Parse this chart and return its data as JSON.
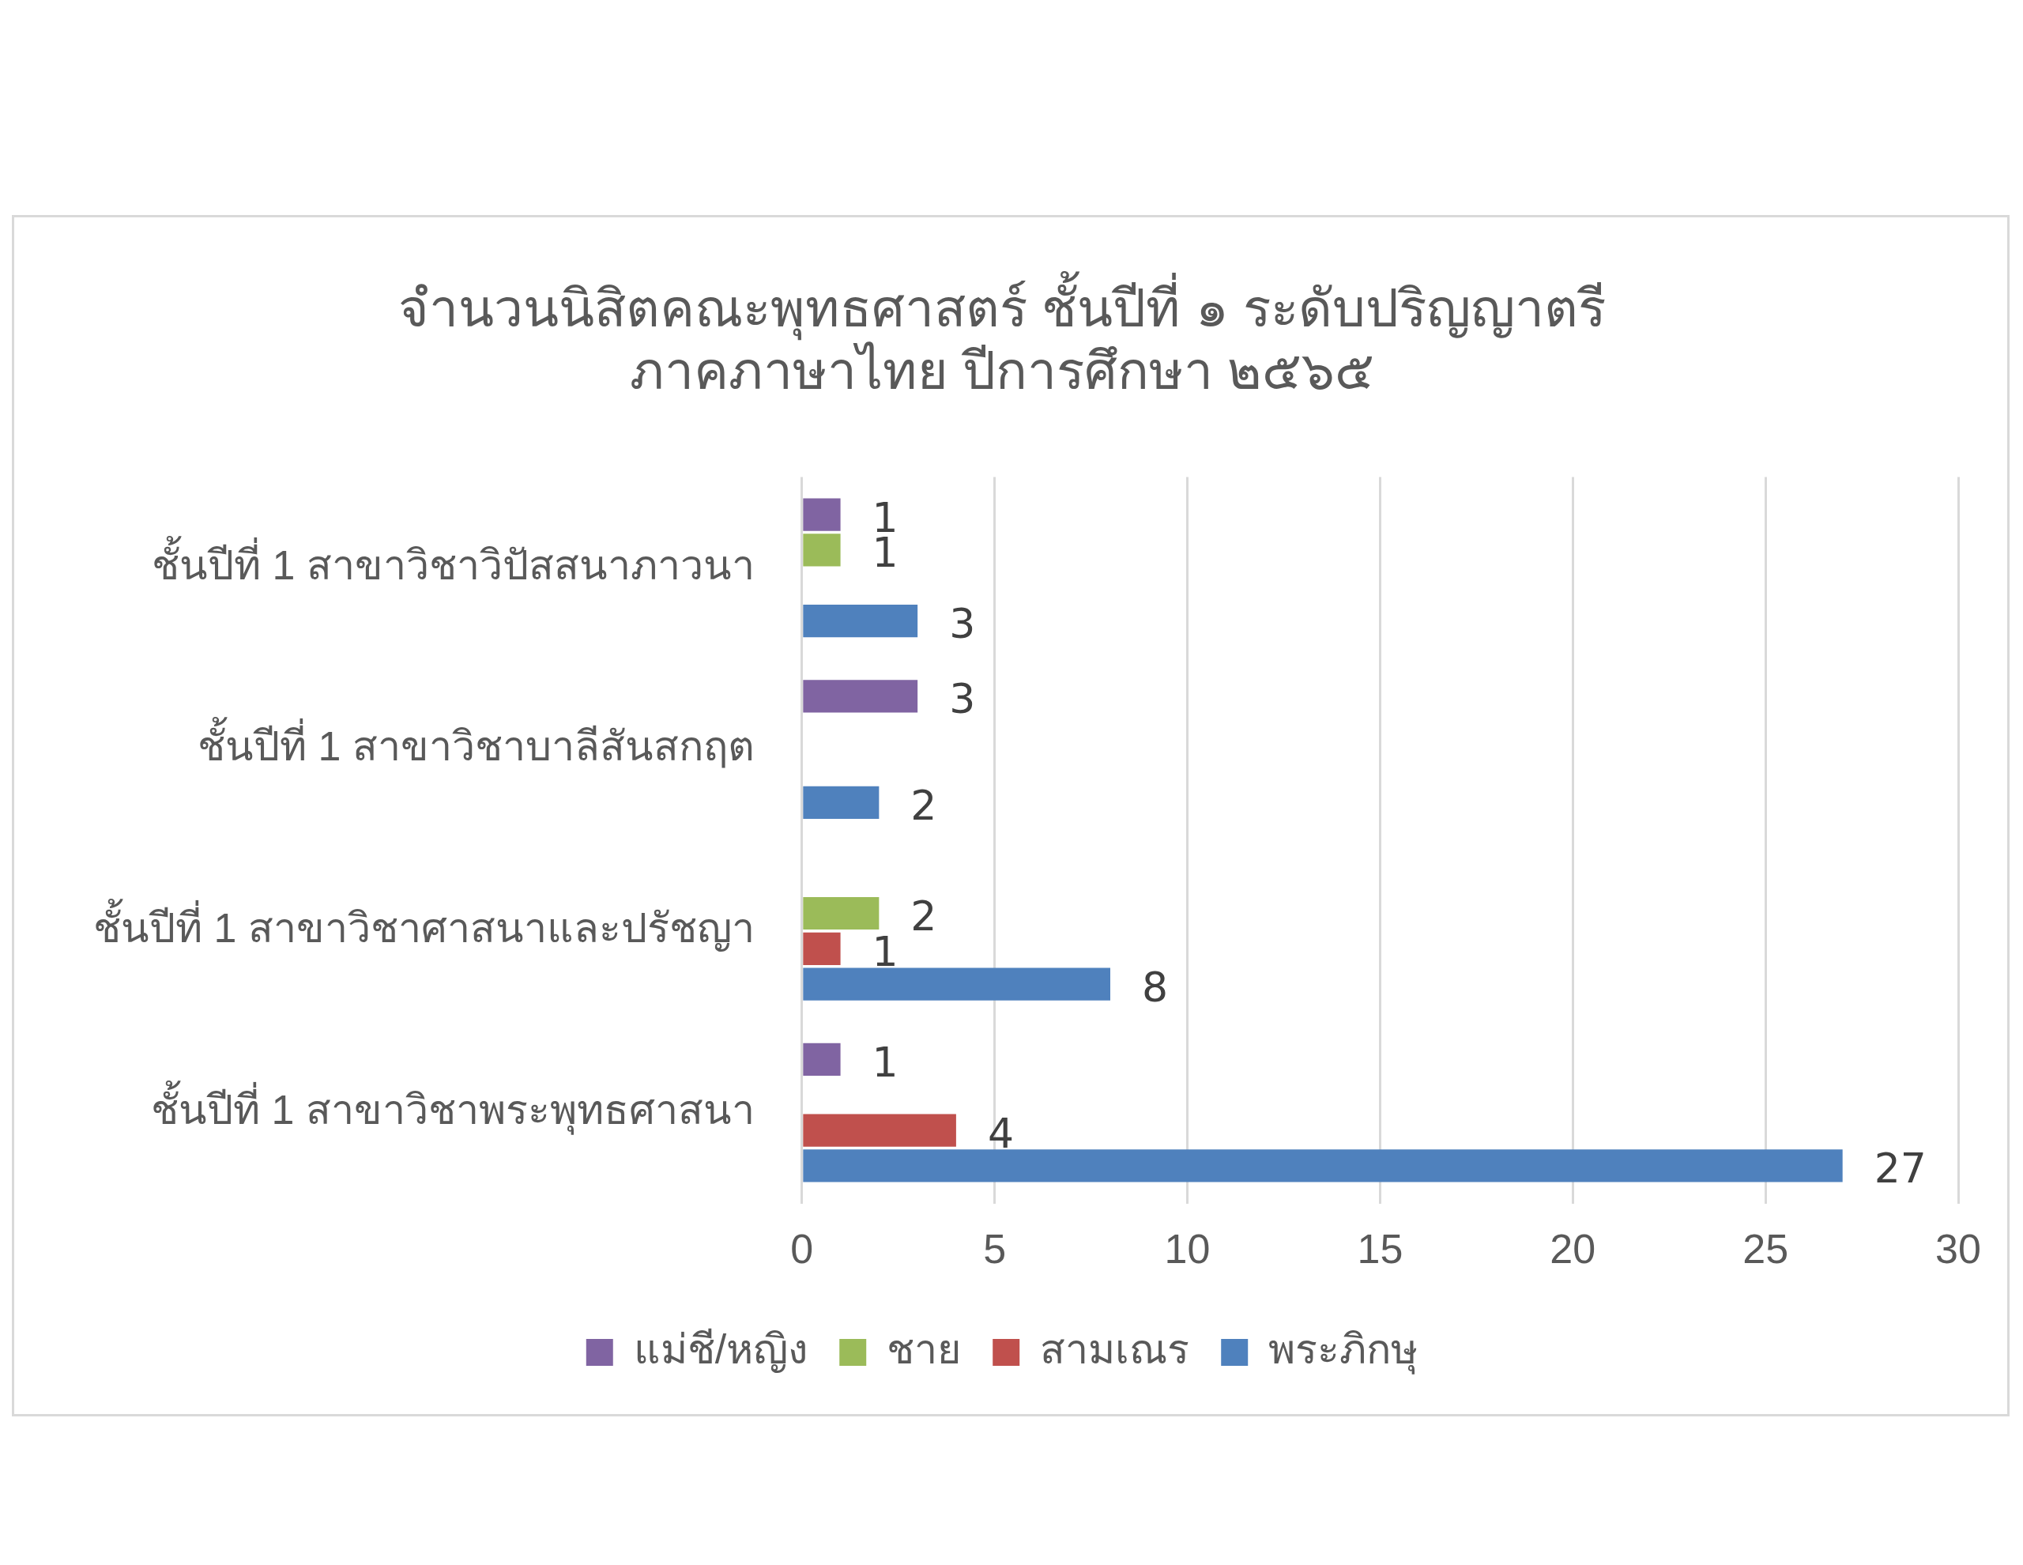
{
  "chart_data": {
    "type": "bar",
    "orientation": "horizontal",
    "title": [
      "จำนวนนิสิตคณะพุทธศาสตร์ ชั้นปีที่ ๑ ระดับปริญญาตรี",
      "ภาคภาษาไทย ปีการศึกษา ๒๕๖๕"
    ],
    "categories": [
      "ชั้นปีที่ 1 สาขาวิชาวิปัสสนาภาวนา",
      "ชั้นปีที่ 1 สาขาวิชาบาลีสันสกฤต",
      "ชั้นปีที่ 1 สาขาวิชาศาสนาและปรัชญา",
      "ชั้นปีที่ 1 สาขาวิชาพระพุทธศาสนา"
    ],
    "series": [
      {
        "name": "แม่ชี/หญิง",
        "color": "#8064a2",
        "values": [
          1,
          3,
          null,
          1
        ]
      },
      {
        "name": "ชาย",
        "color": "#9bbb59",
        "values": [
          1,
          null,
          2,
          null
        ]
      },
      {
        "name": "สามเณร",
        "color": "#c0504d",
        "values": [
          null,
          null,
          1,
          4
        ]
      },
      {
        "name": "พระภิกษุ",
        "color": "#4f81bd",
        "values": [
          3,
          2,
          8,
          27
        ]
      }
    ],
    "xlim": [
      0,
      30
    ],
    "xticks": [
      0,
      5,
      10,
      15,
      20,
      25,
      30
    ],
    "grid": "x",
    "legend": "bottom",
    "data_labels": true
  }
}
